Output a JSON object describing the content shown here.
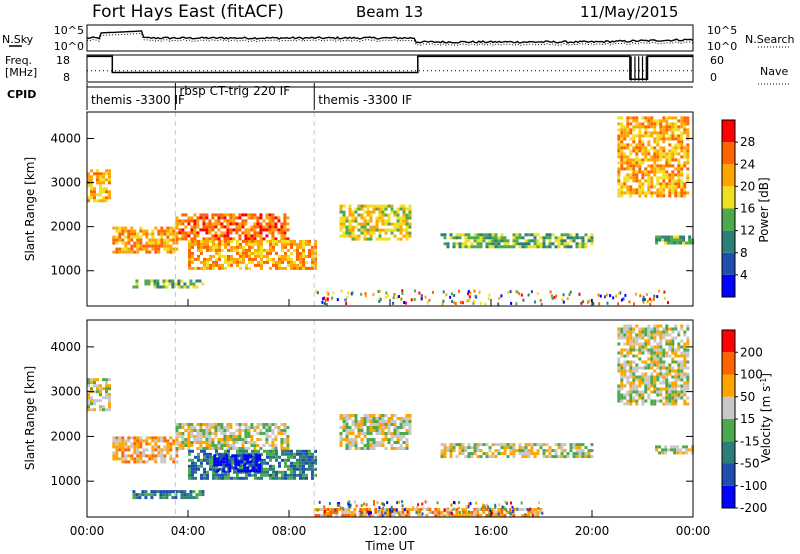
{
  "header": {
    "site": "Fort Hays East (fitACF)",
    "beam": "Beam 13",
    "date": "11/May/2015"
  },
  "status_panel": {
    "left_labels": {
      "nsky": "N.Sky",
      "freq_line1": "Freq.",
      "freq_line2": "[MHz]",
      "cpid": "CPID"
    },
    "right_labels": {
      "nsearch": "N.Search",
      "nave": "Nave"
    },
    "noise_ticks": [
      "10^5",
      "10^0"
    ],
    "freq_ticks": [
      "18",
      "8"
    ],
    "nave_ticks": [
      "60",
      "0"
    ],
    "cpid_segments": [
      {
        "label": "themis -3300 IF",
        "start_hour": 0,
        "end_hour": 3.5
      },
      {
        "label": "rbsp CT-trig 220 IF",
        "start_hour": 3.5,
        "end_hour": 9.0
      },
      {
        "label": "themis -3300 IF",
        "start_hour": 9.0,
        "end_hour": 24.0
      }
    ]
  },
  "chart_data": [
    {
      "type": "heatmap",
      "panel": "power",
      "ylabel": "Slant Range [km]",
      "yticks": [
        "1000",
        "2000",
        "3000",
        "4000"
      ],
      "ylim": [
        200,
        4600
      ],
      "xlim": [
        0,
        24
      ],
      "colorbar": {
        "label": "Power [dB]",
        "ticks": [
          "4",
          "8",
          "12",
          "16",
          "20",
          "24",
          "28"
        ],
        "colors": [
          "#0000ff",
          "#1e4fb0",
          "#2d7d7a",
          "#4caa4c",
          "#f0e020",
          "#ffa500",
          "#ff6400",
          "#ff0000"
        ]
      },
      "regions": [
        {
          "t": [
            0.0,
            0.85
          ],
          "r": [
            2600,
            3300
          ],
          "level": 5
        },
        {
          "t": [
            1.0,
            3.5
          ],
          "r": [
            1400,
            2000
          ],
          "level": 5
        },
        {
          "t": [
            3.5,
            8.0
          ],
          "r": [
            1700,
            2300
          ],
          "level": 6
        },
        {
          "t": [
            4.0,
            9.0
          ],
          "r": [
            1050,
            1700
          ],
          "level": 5
        },
        {
          "t": [
            1.8,
            4.6
          ],
          "r": [
            600,
            800
          ],
          "level": 3
        },
        {
          "t": [
            10.0,
            12.8
          ],
          "r": [
            1700,
            2500
          ],
          "level": 4
        },
        {
          "t": [
            14.0,
            20.0
          ],
          "r": [
            1550,
            1850
          ],
          "level": 3
        },
        {
          "t": [
            21.0,
            23.8
          ],
          "r": [
            2700,
            4500
          ],
          "level": 5
        },
        {
          "t": [
            22.5,
            24.0
          ],
          "r": [
            1650,
            1800
          ],
          "level": 3
        }
      ]
    },
    {
      "type": "heatmap",
      "panel": "velocity",
      "ylabel": "Slant Range [km]",
      "yticks": [
        "1000",
        "2000",
        "3000",
        "4000"
      ],
      "ylim": [
        200,
        4600
      ],
      "xlim": [
        0,
        24
      ],
      "xticks": [
        "00:00",
        "04:00",
        "08:00",
        "12:00",
        "16:00",
        "20:00",
        "00:00"
      ],
      "xlabel": "Time UT",
      "colorbar": {
        "label": "Velocity [m s^-1]",
        "ticks": [
          "200",
          "100",
          "50",
          "15",
          "-15",
          "-50",
          "-100",
          "-200"
        ],
        "colors": [
          "#0000ff",
          "#1e4fb0",
          "#2d7d7a",
          "#4caa4c",
          "#c8c8c8",
          "#ffa500",
          "#ff6400",
          "#ff0000"
        ]
      },
      "regions": [
        {
          "t": [
            0.0,
            0.85
          ],
          "r": [
            2600,
            3300
          ],
          "level": 4
        },
        {
          "t": [
            1.0,
            3.5
          ],
          "r": [
            1400,
            2000
          ],
          "level": 5
        },
        {
          "t": [
            3.5,
            8.0
          ],
          "r": [
            1700,
            2300
          ],
          "level": 4
        },
        {
          "t": [
            4.0,
            9.0
          ],
          "r": [
            1050,
            1700
          ],
          "level": 2
        },
        {
          "t": [
            5.0,
            6.8
          ],
          "r": [
            1200,
            1600
          ],
          "level": 0
        },
        {
          "t": [
            1.8,
            4.6
          ],
          "r": [
            600,
            800
          ],
          "level": 2
        },
        {
          "t": [
            10.0,
            12.8
          ],
          "r": [
            1700,
            2500
          ],
          "level": 4
        },
        {
          "t": [
            14.0,
            20.0
          ],
          "r": [
            1550,
            1850
          ],
          "level": 4
        },
        {
          "t": [
            21.0,
            23.8
          ],
          "r": [
            2700,
            4500
          ],
          "level": 4
        },
        {
          "t": [
            22.5,
            24.0
          ],
          "r": [
            1650,
            1800
          ],
          "level": 4
        },
        {
          "t": [
            9.0,
            18.0
          ],
          "r": [
            200,
            400
          ],
          "level": 5
        }
      ]
    }
  ]
}
